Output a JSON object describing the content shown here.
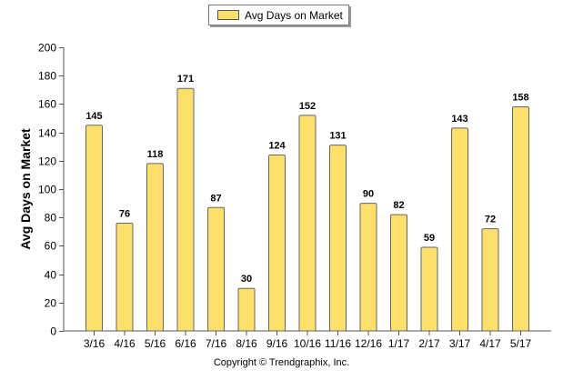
{
  "chart_data": {
    "type": "bar",
    "title": "",
    "xlabel": "",
    "ylabel": "Avg Days on Market",
    "ylim": [
      0,
      200
    ],
    "yticks": [
      0,
      20,
      40,
      60,
      80,
      100,
      120,
      140,
      160,
      180,
      200
    ],
    "grid": false,
    "legend_position": "top-center",
    "categories": [
      "3/16",
      "4/16",
      "5/16",
      "6/16",
      "7/16",
      "8/16",
      "9/16",
      "10/16",
      "11/16",
      "12/16",
      "1/17",
      "2/17",
      "3/17",
      "4/17",
      "5/17"
    ],
    "series": [
      {
        "name": "Avg Days on Market",
        "color": "#fde06a",
        "values": [
          145,
          76,
          118,
          171,
          87,
          30,
          124,
          152,
          131,
          90,
          82,
          59,
          143,
          72,
          158
        ]
      }
    ]
  },
  "footer": {
    "copyright": "Copyright © Trendgraphix, Inc."
  }
}
